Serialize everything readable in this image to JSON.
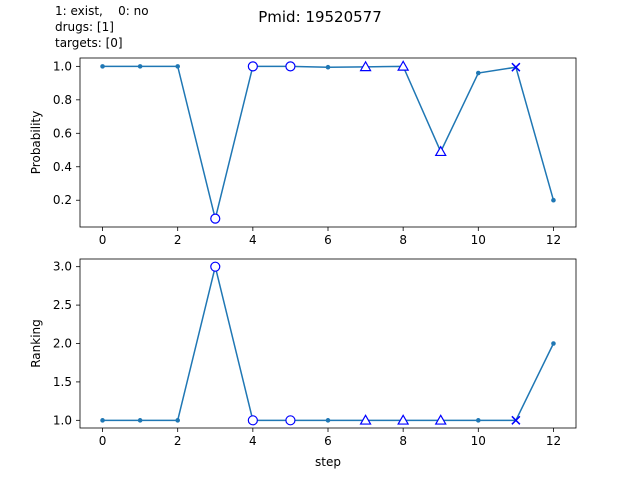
{
  "title": "Pmid: 19520577",
  "legend_notes": {
    "line1": "1: exist,    0: no",
    "line2": "drugs: [1]",
    "line3": "targets: [0]"
  },
  "colors": {
    "line": "#1f77b4",
    "marker_highlight": "#0000ff",
    "axes": "#000000"
  },
  "chart_data": [
    {
      "type": "line",
      "ylabel": "Probability",
      "xlabel": "",
      "xlim": [
        -0.6,
        12.6
      ],
      "ylim": [
        0.04,
        1.05
      ],
      "xticks": [
        0,
        2,
        4,
        6,
        8,
        10,
        12
      ],
      "yticks": [
        0.2,
        0.4,
        0.6,
        0.8,
        1.0
      ],
      "ytick_labels": [
        "0.2",
        "0.4",
        "0.6",
        "0.8",
        "1.0"
      ],
      "x": [
        0,
        1,
        2,
        3,
        4,
        5,
        6,
        7,
        8,
        9,
        10,
        11,
        12
      ],
      "y": [
        1.0,
        1.0,
        1.0,
        0.09,
        1.0,
        1.0,
        0.995,
        0.997,
        1.0,
        0.49,
        0.96,
        0.995,
        0.2
      ],
      "markers": [
        "dot",
        "dot",
        "dot",
        "circle",
        "circle",
        "circle",
        "dot",
        "triangle",
        "triangle",
        "triangle",
        "dot",
        "x",
        "dot"
      ]
    },
    {
      "type": "line",
      "ylabel": "Ranking",
      "xlabel": "step",
      "xlim": [
        -0.6,
        12.6
      ],
      "ylim": [
        0.9,
        3.1
      ],
      "xticks": [
        0,
        2,
        4,
        6,
        8,
        10,
        12
      ],
      "yticks": [
        1.0,
        1.5,
        2.0,
        2.5,
        3.0
      ],
      "ytick_labels": [
        "1.0",
        "1.5",
        "2.0",
        "2.5",
        "3.0"
      ],
      "x": [
        0,
        1,
        2,
        3,
        4,
        5,
        6,
        7,
        8,
        9,
        10,
        11,
        12
      ],
      "y": [
        1,
        1,
        1,
        3,
        1,
        1,
        1,
        1,
        1,
        1,
        1,
        1,
        2
      ],
      "markers": [
        "dot",
        "dot",
        "dot",
        "circle",
        "circle",
        "circle",
        "dot",
        "triangle",
        "triangle",
        "triangle",
        "dot",
        "x",
        "dot"
      ]
    }
  ]
}
